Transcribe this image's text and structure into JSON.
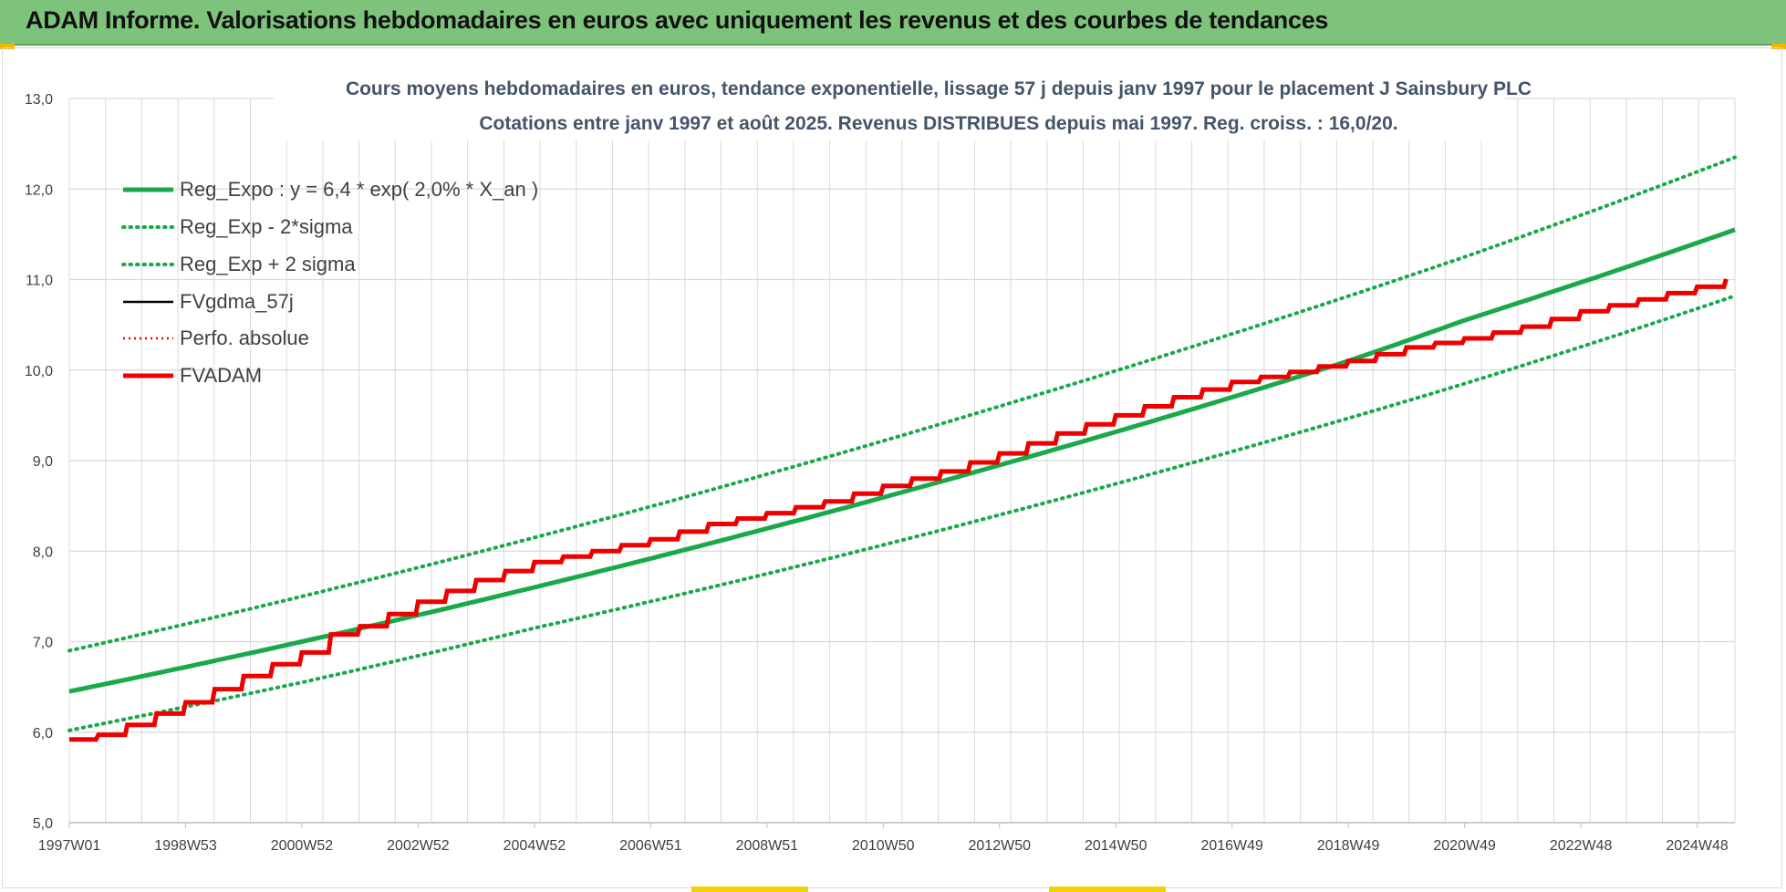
{
  "banner": {
    "title": "ADAM Informe. Valorisations hebdomadaires en euros avec uniquement les revenus et des courbes de tendances"
  },
  "colors": {
    "banner_bg": "#7ec37b",
    "reg_green": "#1aa94a",
    "fv_black": "#000000",
    "fvadam_red": "#ee0000",
    "perfo_red": "#ee0000",
    "grid": "#d9d9d9",
    "text": "#404040"
  },
  "chart_data": {
    "type": "line",
    "title_line1": "Cours moyens hebdomadaires en euros, tendance exponentielle, lissage 57 j depuis janv 1997  pour le placement J Sainsbury PLC",
    "title_line2": "Cotations entre janv 1997 et août 2025.  Revenus DISTRIBUES depuis mai 1997. Reg. croiss. : 16,0/20.",
    "xlabel": "",
    "ylabel": "",
    "ylim": [
      5.0,
      13.0
    ],
    "xlim": [
      1997.0,
      2025.65
    ],
    "grid": true,
    "legend_position": "top-left",
    "y_ticks": [
      "5,0",
      "6,0",
      "7,0",
      "8,0",
      "9,0",
      "10,0",
      "11,0",
      "12,0",
      "13,0"
    ],
    "x_ticks": [
      {
        "label": "1997W01",
        "x": 1997.0
      },
      {
        "label": "1998W53",
        "x": 1999.0
      },
      {
        "label": "2000W52",
        "x": 2001.0
      },
      {
        "label": "2002W52",
        "x": 2003.0
      },
      {
        "label": "2004W52",
        "x": 2005.0
      },
      {
        "label": "2006W51",
        "x": 2007.0
      },
      {
        "label": "2008W51",
        "x": 2009.0
      },
      {
        "label": "2010W50",
        "x": 2011.0
      },
      {
        "label": "2012W50",
        "x": 2013.0
      },
      {
        "label": "2014W50",
        "x": 2015.0
      },
      {
        "label": "2016W49",
        "x": 2017.0
      },
      {
        "label": "2018W49",
        "x": 2019.0
      },
      {
        "label": "2020W49",
        "x": 2021.0
      },
      {
        "label": "2022W48",
        "x": 2023.0
      },
      {
        "label": "2024W48",
        "x": 2025.0
      }
    ],
    "series": [
      {
        "name": "Reg_Expo : y = 6,4 * exp( 2,0% *  X_an )",
        "style": "solid-thick",
        "color": "#1aa94a",
        "x": [
          1997.0,
          2001.0,
          2005.0,
          2009.0,
          2013.0,
          2017.0,
          2019.0,
          2021.0,
          2025.65
        ],
        "y": [
          6.45,
          7.0,
          7.6,
          8.25,
          8.95,
          9.7,
          10.1,
          10.55,
          11.55
        ]
      },
      {
        "name": "Reg_Exp - 2*sigma",
        "style": "dotted",
        "color": "#1aa94a",
        "x": [
          1997.0,
          2001.0,
          2005.0,
          2009.0,
          2013.0,
          2017.0,
          2021.0,
          2025.65
        ],
        "y": [
          6.02,
          6.55,
          7.15,
          7.75,
          8.4,
          9.1,
          9.85,
          10.82
        ]
      },
      {
        "name": "Reg_Exp + 2 sigma",
        "style": "dotted",
        "color": "#1aa94a",
        "x": [
          1997.0,
          2001.0,
          2005.0,
          2009.0,
          2013.0,
          2017.0,
          2021.0,
          2025.65
        ],
        "y": [
          6.9,
          7.5,
          8.15,
          8.85,
          9.6,
          10.4,
          11.25,
          12.35
        ]
      },
      {
        "name": "FVgdma_57j",
        "style": "solid",
        "color": "#000000",
        "x": [
          1997.0,
          1997.4,
          1998.0,
          1999.0,
          2000.0,
          2001.0,
          2001.5,
          2002.0,
          2003.0,
          2004.0,
          2005.0,
          2006.0,
          2007.0,
          2008.0,
          2009.0,
          2010.0,
          2011.0,
          2012.0,
          2013.0,
          2014.0,
          2015.0,
          2016.0,
          2017.0,
          2018.0,
          2019.0,
          2020.0,
          2021.0,
          2022.0,
          2023.0,
          2024.0,
          2025.0,
          2025.65
        ],
        "y": [
          5.92,
          5.95,
          6.08,
          6.33,
          6.62,
          6.88,
          7.08,
          7.17,
          7.44,
          7.68,
          7.88,
          8.0,
          8.13,
          8.3,
          8.42,
          8.55,
          8.72,
          8.88,
          9.08,
          9.3,
          9.5,
          9.7,
          9.87,
          9.98,
          10.1,
          10.25,
          10.35,
          10.48,
          10.65,
          10.78,
          10.92,
          11.03
        ]
      },
      {
        "name": "Perfo. absolue",
        "style": "dotted",
        "color": "#ee0000",
        "x": [
          1997.0,
          1997.4,
          1998.0,
          1999.0,
          2000.0,
          2001.0,
          2001.5,
          2002.0,
          2003.0,
          2004.0,
          2005.0,
          2006.0,
          2007.0,
          2008.0,
          2009.0,
          2010.0,
          2011.0,
          2012.0,
          2013.0,
          2014.0,
          2015.0,
          2016.0,
          2017.0,
          2018.0,
          2019.0,
          2020.0,
          2021.0,
          2022.0,
          2023.0,
          2024.0,
          2025.0,
          2025.65
        ],
        "y": [
          5.92,
          5.95,
          6.08,
          6.33,
          6.62,
          6.88,
          7.08,
          7.17,
          7.44,
          7.68,
          7.88,
          8.0,
          8.13,
          8.3,
          8.42,
          8.55,
          8.72,
          8.88,
          9.08,
          9.3,
          9.5,
          9.7,
          9.87,
          9.98,
          10.1,
          10.25,
          10.35,
          10.48,
          10.65,
          10.78,
          10.92,
          11.03
        ]
      },
      {
        "name": "FVADAM",
        "style": "solid-thick-steps",
        "color": "#ee0000",
        "x": [
          1997.0,
          1997.4,
          1998.0,
          1999.0,
          2000.0,
          2001.0,
          2001.5,
          2002.0,
          2003.0,
          2004.0,
          2005.0,
          2006.0,
          2007.0,
          2008.0,
          2009.0,
          2010.0,
          2011.0,
          2012.0,
          2013.0,
          2014.0,
          2015.0,
          2016.0,
          2017.0,
          2018.0,
          2019.0,
          2020.0,
          2021.0,
          2022.0,
          2023.0,
          2024.0,
          2025.0,
          2025.65
        ],
        "y": [
          5.92,
          5.95,
          6.08,
          6.33,
          6.62,
          6.88,
          7.08,
          7.17,
          7.44,
          7.68,
          7.88,
          8.0,
          8.13,
          8.3,
          8.42,
          8.55,
          8.72,
          8.88,
          9.08,
          9.3,
          9.5,
          9.7,
          9.87,
          9.98,
          10.1,
          10.25,
          10.35,
          10.48,
          10.65,
          10.78,
          10.92,
          11.03
        ]
      }
    ]
  }
}
